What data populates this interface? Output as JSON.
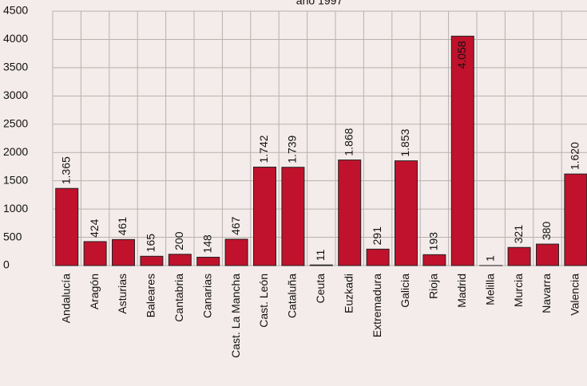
{
  "chart_data": {
    "type": "bar",
    "title": "año 1997",
    "categories": [
      "Andalucía",
      "Aragón",
      "Asturias",
      "Baleares",
      "Cantabria",
      "Canarias",
      "Cast. La Mancha",
      "Cast. León",
      "Cataluña",
      "Ceuta",
      "Euzkadi",
      "Extremadura",
      "Galicia",
      "Rioja",
      "Madrid",
      "Melilla",
      "Murcia",
      "Navarra",
      "Valencia"
    ],
    "values": [
      1365,
      424,
      461,
      165,
      200,
      148,
      467,
      1742,
      1739,
      11,
      1868,
      291,
      1853,
      193,
      4058,
      1,
      321,
      380,
      1620
    ],
    "value_labels": [
      "1.365",
      "424",
      "461",
      "165",
      "200",
      "148",
      "467",
      "1.742",
      "1.739",
      "11",
      "1.868",
      "291",
      "1.853",
      "193",
      "4.058",
      "1",
      "321",
      "380",
      "1.620"
    ],
    "color": "#c0122c",
    "ylim": [
      0,
      4500
    ],
    "yticks": [
      0,
      500,
      1000,
      1500,
      2000,
      2500,
      3000,
      3500,
      4000,
      4500
    ],
    "grid": true
  }
}
